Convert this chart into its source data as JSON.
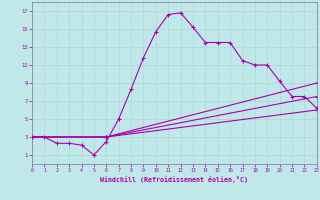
{
  "bg_color": "#c0e8e8",
  "line_color": "#aa00aa",
  "grid_color": "#a8d8d8",
  "xlabel": "Windchill (Refroidissement éolien,°C)",
  "xlim": [
    0,
    23
  ],
  "ylim": [
    0,
    18
  ],
  "xticks": [
    0,
    1,
    2,
    3,
    4,
    5,
    6,
    7,
    8,
    9,
    10,
    11,
    12,
    13,
    14,
    15,
    16,
    17,
    18,
    19,
    20,
    21,
    22,
    23
  ],
  "yticks": [
    1,
    3,
    5,
    7,
    9,
    11,
    13,
    15,
    17
  ],
  "curve1_x": [
    0,
    1,
    2,
    3,
    4,
    5,
    6,
    7,
    8,
    9,
    10,
    11,
    12,
    13,
    14,
    15,
    16,
    17,
    18,
    19,
    20,
    21,
    22,
    23
  ],
  "curve1_y": [
    3,
    3,
    2.3,
    2.3,
    2.1,
    1.0,
    2.5,
    5.0,
    8.3,
    11.8,
    14.7,
    16.6,
    16.8,
    15.2,
    13.5,
    13.5,
    13.5,
    11.5,
    11.0,
    11.0,
    9.2,
    7.5,
    7.5,
    6.2
  ],
  "line2_x": [
    0,
    6,
    23
  ],
  "line2_y": [
    3,
    3.0,
    9.0
  ],
  "line3_x": [
    0,
    6,
    23
  ],
  "line3_y": [
    3,
    3.0,
    7.5
  ],
  "line4_x": [
    0,
    6,
    23
  ],
  "line4_y": [
    3,
    3.0,
    6.0
  ]
}
